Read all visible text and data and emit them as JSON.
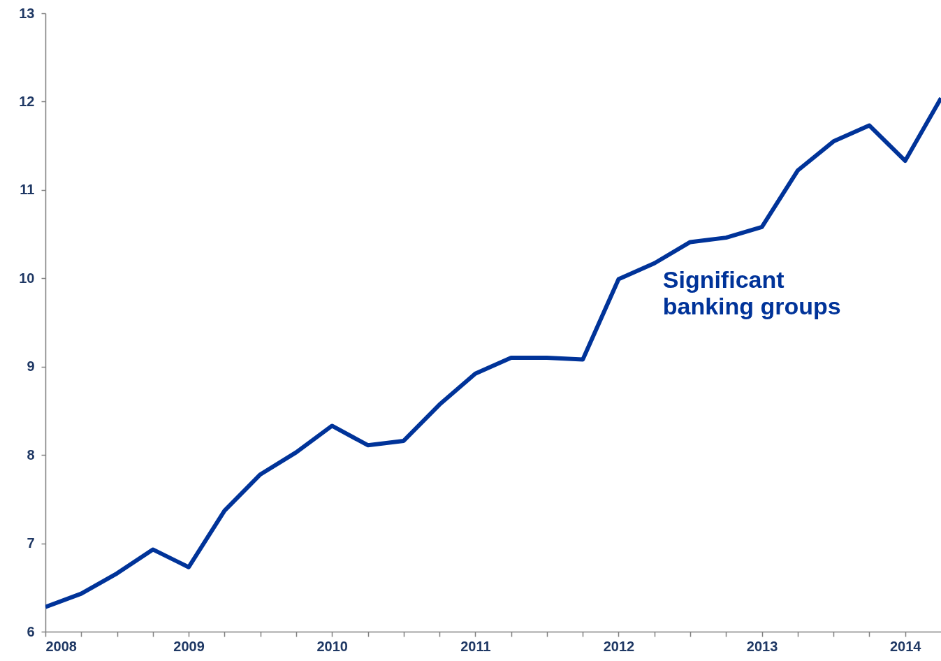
{
  "chart_data": {
    "type": "line",
    "x": [
      2008,
      2008.25,
      2008.5,
      2008.75,
      2009,
      2009.25,
      2009.5,
      2009.75,
      2010,
      2010.25,
      2010.5,
      2010.75,
      2011,
      2011.25,
      2011.5,
      2011.75,
      2012,
      2012.25,
      2012.5,
      2012.75,
      2013,
      2013.25,
      2013.5,
      2013.75,
      2014,
      2014.25
    ],
    "series": [
      {
        "name": "Significant banking groups",
        "color": "#003399",
        "values": [
          6.28,
          6.43,
          6.66,
          6.93,
          6.73,
          7.37,
          7.78,
          8.03,
          8.33,
          8.11,
          8.16,
          8.57,
          8.92,
          9.1,
          9.1,
          9.08,
          9.99,
          10.17,
          10.41,
          10.46,
          10.58,
          11.22,
          11.55,
          11.73,
          11.33,
          12.04
        ]
      }
    ],
    "xlim": [
      2008,
      2014.25
    ],
    "xticks": [
      2008,
      {
        "value": 2008.25,
        "label": null
      },
      {
        "value": 2008.5,
        "label": null
      },
      {
        "value": 2008.75,
        "label": null
      },
      2009,
      {
        "value": 2009.25,
        "label": null
      },
      {
        "value": 2009.5,
        "label": null
      },
      {
        "value": 2009.75,
        "label": null
      },
      2010,
      {
        "value": 2010.25,
        "label": null
      },
      {
        "value": 2010.5,
        "label": null
      },
      {
        "value": 2010.75,
        "label": null
      },
      2011,
      {
        "value": 2011.25,
        "label": null
      },
      {
        "value": 2011.5,
        "label": null
      },
      {
        "value": 2011.75,
        "label": null
      },
      2012,
      {
        "value": 2012.25,
        "label": null
      },
      {
        "value": 2012.5,
        "label": null
      },
      {
        "value": 2012.75,
        "label": null
      },
      2013,
      {
        "value": 2013.25,
        "label": null
      },
      {
        "value": 2013.5,
        "label": null
      },
      {
        "value": 2013.75,
        "label": null
      },
      2014
    ],
    "ylim": [
      6,
      13
    ],
    "yticks": [
      6,
      7,
      8,
      9,
      10,
      11,
      12,
      13
    ],
    "grid": false,
    "marker": "none",
    "line_style": "solid"
  }
}
